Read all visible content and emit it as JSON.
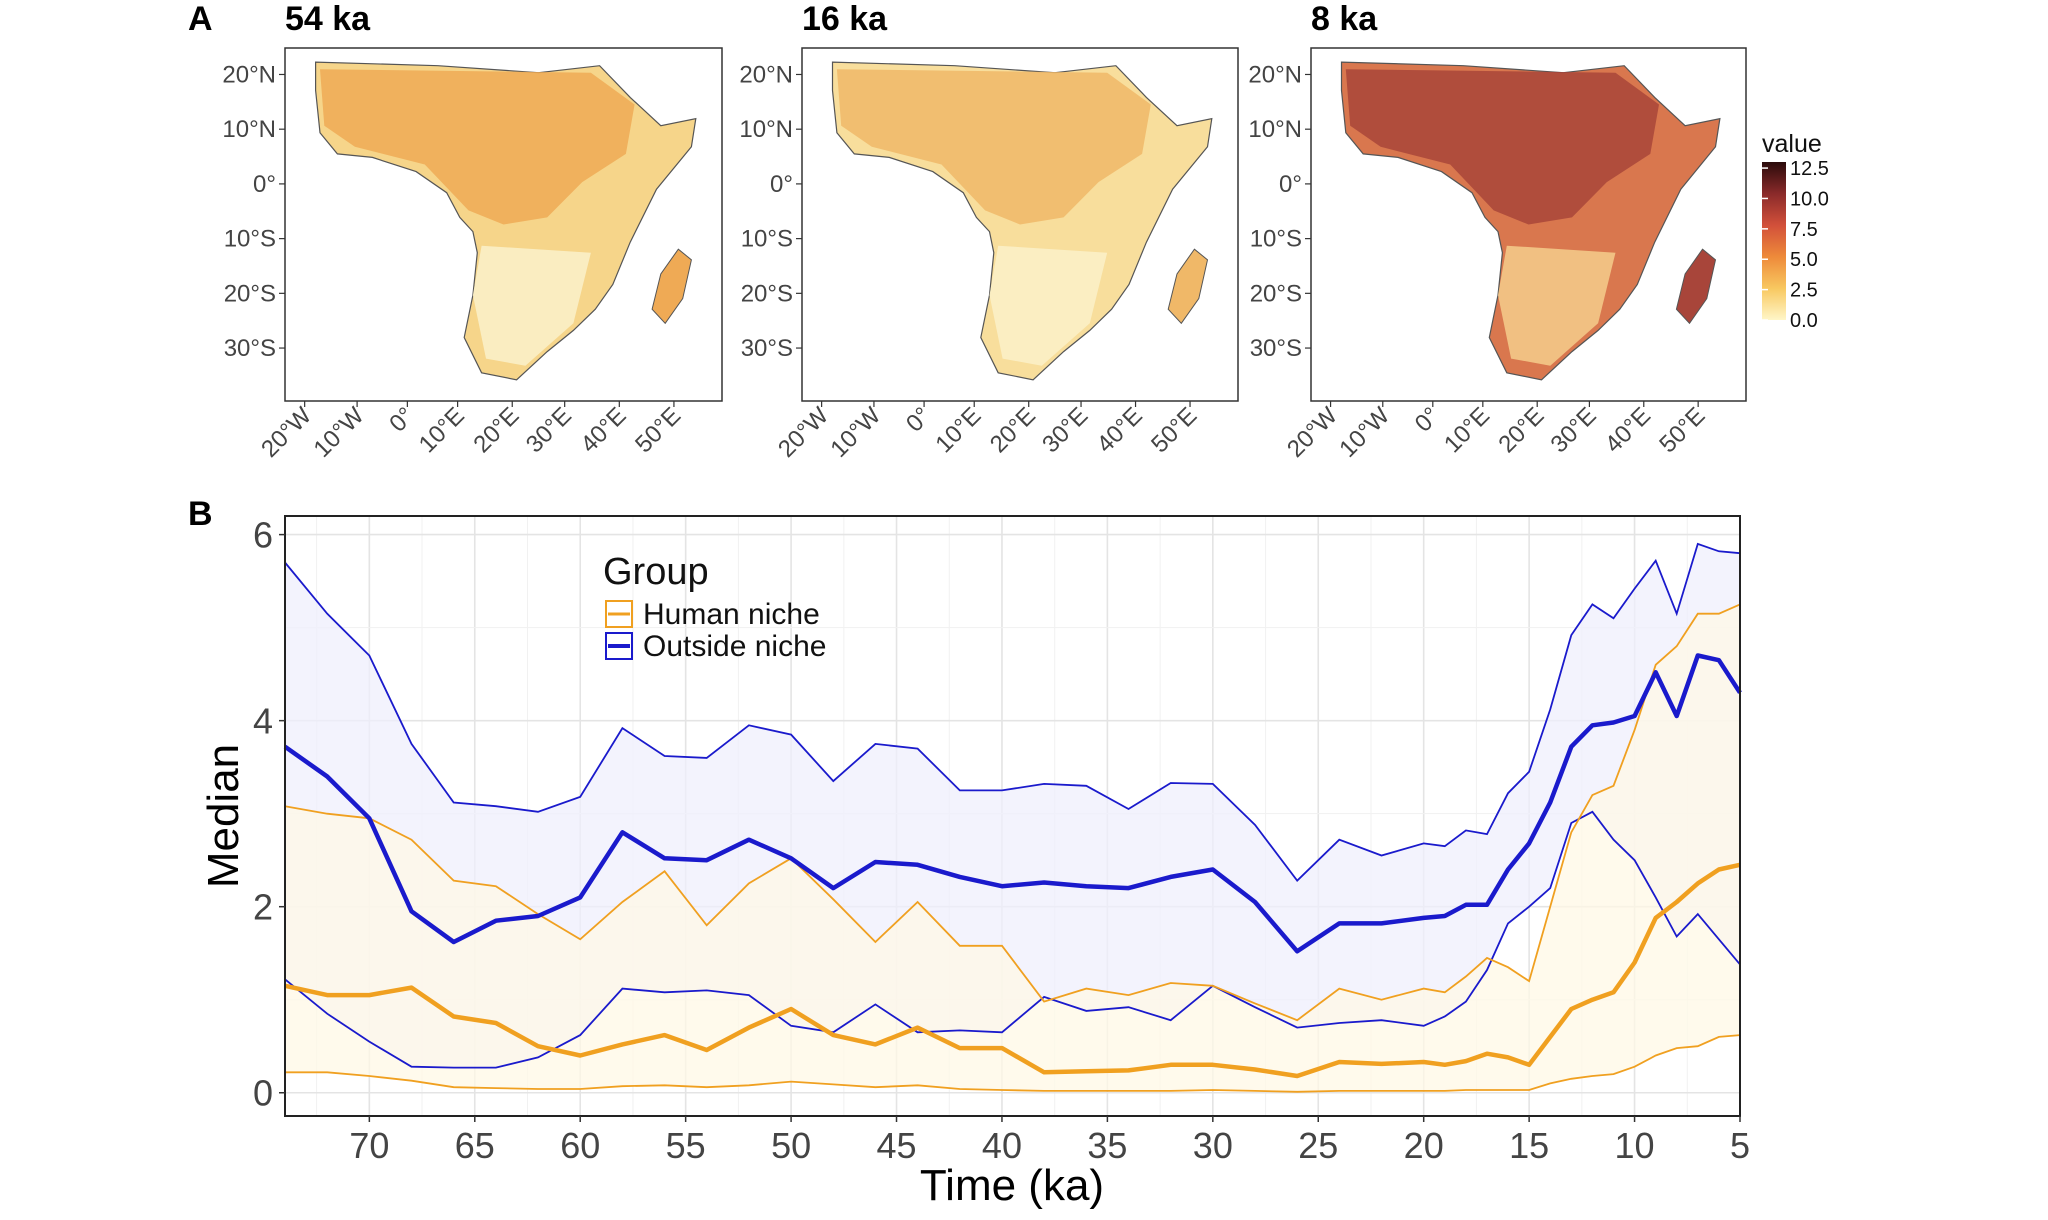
{
  "figure": {
    "panel_a_letter": "A",
    "panel_b_letter": "B"
  },
  "colors": {
    "human": "#F0A020",
    "outside": "#1A1ACC",
    "outside_band": "#EFEFFC",
    "human_band": "#FFF8E6"
  },
  "maps": [
    {
      "title": "54 ka"
    },
    {
      "title": "16 ka"
    },
    {
      "title": "8 ka"
    }
  ],
  "map_axes": {
    "lat_ticks": [
      "20°N",
      "10°N",
      "0°",
      "10°S",
      "20°S",
      "30°S"
    ],
    "lon_ticks": [
      "20°W",
      "10°W",
      "0°",
      "10°E",
      "20°E",
      "30°E",
      "40°E",
      "50°E"
    ]
  },
  "colorbar": {
    "title": "value",
    "ticks": [
      "12.5",
      "10.0",
      "7.5",
      "5.0",
      "2.5",
      "0.0"
    ],
    "min": 0,
    "max": 13,
    "stops": [
      "#FFF6C8",
      "#F8C860",
      "#EE8A3A",
      "#D2503A",
      "#8A2A2A",
      "#2A0A0A"
    ]
  },
  "chart_data": [
    {
      "type": "map",
      "title": "54 ka",
      "legend": "value"
    },
    {
      "type": "map",
      "title": "16 ka",
      "legend": "value"
    },
    {
      "type": "map",
      "title": "8 ka",
      "legend": "value"
    },
    {
      "type": "line",
      "xlabel": "Time (ka)",
      "ylabel": "Median",
      "xlim": [
        74,
        5
      ],
      "ylim": [
        -0.25,
        6.2
      ],
      "x_ticks": [
        70,
        65,
        60,
        55,
        50,
        45,
        40,
        35,
        30,
        25,
        20,
        15,
        10,
        5
      ],
      "y_ticks": [
        0,
        2,
        4,
        6
      ],
      "legend_title": "Group",
      "legend_position": "top-left",
      "grid": true,
      "x": [
        74,
        72,
        70,
        68,
        66,
        64,
        62,
        60,
        58,
        56,
        54,
        52,
        50,
        48,
        46,
        44,
        42,
        40,
        38,
        36,
        34,
        32,
        30,
        28,
        26,
        24,
        22,
        20,
        19,
        18,
        17,
        16,
        15,
        14,
        13,
        12,
        11,
        10,
        9,
        8,
        7,
        6,
        5
      ],
      "series": [
        {
          "name": "Human niche",
          "color": "#F0A020",
          "median": [
            1.15,
            1.05,
            1.05,
            1.13,
            0.82,
            0.75,
            0.5,
            0.4,
            0.52,
            0.62,
            0.46,
            0.7,
            0.9,
            0.62,
            0.52,
            0.7,
            0.48,
            0.48,
            0.22,
            0.23,
            0.24,
            0.3,
            0.3,
            0.25,
            0.18,
            0.33,
            0.31,
            0.33,
            0.3,
            0.34,
            0.42,
            0.38,
            0.3,
            0.6,
            0.9,
            1.0,
            1.08,
            1.4,
            1.88,
            2.05,
            2.25,
            2.4,
            2.45
          ],
          "upper": [
            3.08,
            3.0,
            2.95,
            2.72,
            2.28,
            2.22,
            1.92,
            1.65,
            2.05,
            2.38,
            1.8,
            2.25,
            2.52,
            2.08,
            1.62,
            2.05,
            1.58,
            1.58,
            0.98,
            1.12,
            1.05,
            1.18,
            1.15,
            0.96,
            0.78,
            1.12,
            1.0,
            1.12,
            1.08,
            1.25,
            1.45,
            1.35,
            1.2,
            2.0,
            2.8,
            3.2,
            3.3,
            3.9,
            4.6,
            4.8,
            5.15,
            5.15,
            5.25
          ],
          "lower": [
            0.22,
            0.22,
            0.18,
            0.13,
            0.06,
            0.05,
            0.04,
            0.04,
            0.07,
            0.08,
            0.06,
            0.08,
            0.12,
            0.09,
            0.06,
            0.08,
            0.04,
            0.03,
            0.02,
            0.02,
            0.02,
            0.02,
            0.03,
            0.02,
            0.01,
            0.02,
            0.02,
            0.02,
            0.02,
            0.03,
            0.03,
            0.03,
            0.03,
            0.1,
            0.15,
            0.18,
            0.2,
            0.28,
            0.4,
            0.48,
            0.5,
            0.6,
            0.62
          ]
        },
        {
          "name": "Outside niche",
          "color": "#1A1ACC",
          "median": [
            3.72,
            3.4,
            2.95,
            1.95,
            1.62,
            1.85,
            1.9,
            2.1,
            2.8,
            2.52,
            2.5,
            2.72,
            2.52,
            2.2,
            2.48,
            2.45,
            2.32,
            2.22,
            2.26,
            2.22,
            2.2,
            2.32,
            2.4,
            2.05,
            1.52,
            1.82,
            1.82,
            1.88,
            1.9,
            2.02,
            2.02,
            2.4,
            2.68,
            3.12,
            3.72,
            3.95,
            3.98,
            4.05,
            4.52,
            4.05,
            4.7,
            4.65,
            4.3
          ],
          "upper": [
            5.7,
            5.15,
            4.7,
            3.75,
            3.12,
            3.08,
            3.02,
            3.18,
            3.92,
            3.62,
            3.6,
            3.95,
            3.85,
            3.35,
            3.75,
            3.7,
            3.25,
            3.25,
            3.32,
            3.3,
            3.05,
            3.33,
            3.32,
            2.88,
            2.28,
            2.72,
            2.55,
            2.68,
            2.65,
            2.82,
            2.78,
            3.22,
            3.45,
            4.12,
            4.92,
            5.25,
            5.1,
            5.42,
            5.72,
            5.15,
            5.9,
            5.82,
            5.8
          ],
          "lower": [
            1.22,
            0.85,
            0.55,
            0.28,
            0.27,
            0.27,
            0.38,
            0.62,
            1.12,
            1.08,
            1.1,
            1.05,
            0.72,
            0.65,
            0.95,
            0.65,
            0.67,
            0.65,
            1.03,
            0.88,
            0.92,
            0.78,
            1.15,
            0.92,
            0.7,
            0.75,
            0.78,
            0.72,
            0.82,
            0.98,
            1.32,
            1.82,
            2.0,
            2.2,
            2.9,
            3.02,
            2.72,
            2.5,
            2.1,
            1.68,
            1.92,
            1.65,
            1.38
          ]
        }
      ]
    }
  ]
}
